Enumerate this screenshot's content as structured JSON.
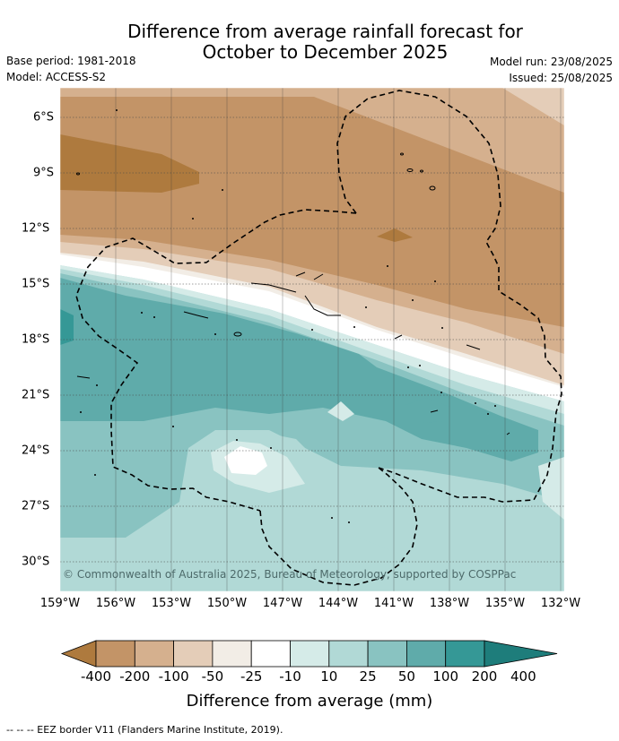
{
  "title_line1": "Difference from average rainfall forecast for",
  "title_line2": "October to December 2025",
  "base_period": "Base period: 1981-2018",
  "model": "Model: ACCESS-S2",
  "model_run": "Model run: 23/08/2025",
  "issued": "Issued: 25/08/2025",
  "copyright": "© Commonwealth of Australia 2025, Bureau of Meteorology, supported by COSPPac",
  "lon_labels": [
    "159°W",
    "156°W",
    "153°W",
    "150°W",
    "147°W",
    "144°W",
    "141°W",
    "138°W",
    "135°W",
    "132°W"
  ],
  "lat_labels": [
    "6°S",
    "9°S",
    "12°S",
    "15°S",
    "18°S",
    "21°S",
    "24°S",
    "27°S",
    "30°S"
  ],
  "colorbar": {
    "title": "Difference from average (mm)",
    "labels": [
      "-400",
      "-200",
      "-100",
      "-50",
      "-25",
      "-10",
      "10",
      "25",
      "50",
      "100",
      "200",
      "400"
    ],
    "colors": [
      "#ae7a3e",
      "#c39467",
      "#d5b08e",
      "#e4cdb8",
      "#f2ede6",
      "#ffffff",
      "#d5ebe8",
      "#b1d9d6",
      "#89c3c1",
      "#5fabaa",
      "#359896",
      "#1e7d7b"
    ]
  },
  "footer": "--  --  -- EEZ border V11 (Flanders Marine Institute, 2019)."
}
